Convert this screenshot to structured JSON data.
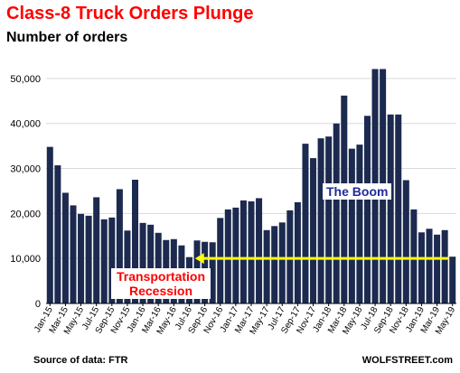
{
  "header": {
    "title": "Class-8 Truck Orders Plunge",
    "subtitle": "Number of orders"
  },
  "footer": {
    "source": "Source of data: FTR",
    "credit": "WOLFSTREET.com"
  },
  "annotations": {
    "boom": "The Boom",
    "recession_line1": "Transportation",
    "recession_line2": "Recession"
  },
  "colors": {
    "bar": "#1c2a4f",
    "title": "#ff0000",
    "boom_label": "#1f2a9c",
    "recession_label": "#ff0000",
    "arrow": "#ffff00",
    "grid": "#d9d9d9"
  },
  "chart_data": {
    "type": "bar",
    "title": "Class-8 Truck Orders Plunge",
    "subtitle": "Number of orders",
    "xlabel": "",
    "ylabel": "",
    "ylim": [
      0,
      55000
    ],
    "yticks": [
      0,
      10000,
      20000,
      30000,
      40000,
      50000
    ],
    "ytick_labels": [
      "0",
      "10,000",
      "20,000",
      "30,000",
      "40,000",
      "50,000"
    ],
    "grid": true,
    "legend": "none",
    "categories": [
      "Jan-15",
      "Feb-15",
      "Mar-15",
      "Apr-15",
      "May-15",
      "Jun-15",
      "Jul-15",
      "Aug-15",
      "Sep-15",
      "Oct-15",
      "Nov-15",
      "Dec-15",
      "Jan-16",
      "Feb-16",
      "Mar-16",
      "Apr-16",
      "May-16",
      "Jun-16",
      "Jul-16",
      "Aug-16",
      "Sep-16",
      "Oct-16",
      "Nov-16",
      "Dec-16",
      "Jan-17",
      "Feb-17",
      "Mar-17",
      "Apr-17",
      "May-17",
      "Jun-17",
      "Jul-17",
      "Aug-17",
      "Sep-17",
      "Oct-17",
      "Nov-17",
      "Dec-17",
      "Jan-18",
      "Feb-18",
      "Mar-18",
      "Apr-18",
      "May-18",
      "Jun-18",
      "Jul-18",
      "Aug-18",
      "Sep-18",
      "Oct-18",
      "Nov-18",
      "Dec-18",
      "Jan-19",
      "Feb-19",
      "Mar-19",
      "Apr-19",
      "May-19"
    ],
    "tick_labels": [
      "Jan-15",
      "Mar-15",
      "May-15",
      "Jul-15",
      "Sep-15",
      "Nov-15",
      "Jan-16",
      "Mar-16",
      "May-16",
      "Jul-16",
      "Sep-16",
      "Nov-16",
      "Jan-17",
      "Mar-17",
      "May-17",
      "Jul-17",
      "Sep-17",
      "Nov-17",
      "Jan-18",
      "Mar-18",
      "May-18",
      "Jul-18",
      "Sep-18",
      "Nov-18",
      "Jan-19",
      "Mar-19",
      "May-19"
    ],
    "values": [
      34800,
      30700,
      24600,
      21800,
      19900,
      19500,
      23600,
      18700,
      19100,
      25400,
      16200,
      27500,
      17900,
      17500,
      15700,
      14100,
      14300,
      12900,
      10300,
      14000,
      13700,
      13600,
      19000,
      20900,
      21300,
      22900,
      22700,
      23400,
      16300,
      17200,
      18000,
      20700,
      22500,
      35500,
      32300,
      36700,
      37100,
      40000,
      46200,
      34400,
      35300,
      41700,
      52100,
      52100,
      42000,
      42000,
      27400,
      20900,
      15800,
      16600,
      15300,
      16300,
      10400
    ],
    "reference_level": 10000
  }
}
